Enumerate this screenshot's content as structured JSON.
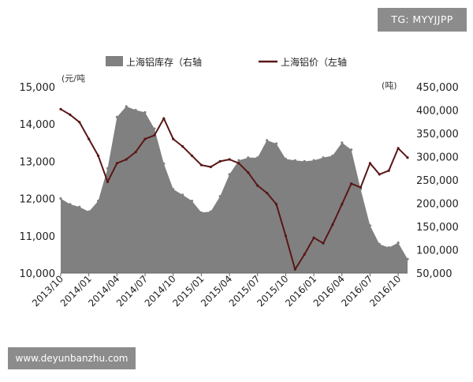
{
  "watermark_top": "TG: MYYJJPP",
  "watermark_bottom": "www.deyunbanzhu.com",
  "colors": {
    "inventory_fill": "#808080",
    "price_line": "#5a1616"
  },
  "chart_data": {
    "type": "line",
    "legend": [
      {
        "label": "上海铝库存（右轴",
        "kind": "area",
        "color": "#808080"
      },
      {
        "label": "上海铝价（左轴",
        "kind": "line",
        "color": "#5a1616"
      }
    ],
    "left_axis": {
      "unit": "(元/吨",
      "ylim": [
        10000,
        15000
      ],
      "ticks": [
        "10,000",
        "11,000",
        "12,000",
        "13,000",
        "14,000",
        "15,000"
      ]
    },
    "right_axis": {
      "unit": "(吨)",
      "ylim": [
        50000,
        450000
      ],
      "ticks": [
        "50,000",
        "100,000",
        "150,000",
        "200,000",
        "250,000",
        "300,000",
        "350,000",
        "400,000",
        "450,000"
      ]
    },
    "x_labels": [
      "2013/10",
      "2014/01",
      "2014/04",
      "2014/07",
      "2014/10",
      "2015/01",
      "2015/04",
      "2015/07",
      "2015/10",
      "2016/01",
      "2016/04",
      "2016/07",
      "2016/10"
    ],
    "x_range": [
      "2013-10",
      "2016-11"
    ],
    "series": [
      {
        "name": "上海铝库存（右轴",
        "axis": "right",
        "type": "area",
        "x": [
          "2013-10",
          "2013-11",
          "2013-12",
          "2014-01",
          "2014-02",
          "2014-03",
          "2014-04",
          "2014-05",
          "2014-06",
          "2014-07",
          "2014-08",
          "2014-09",
          "2014-10",
          "2014-11",
          "2014-12",
          "2015-01",
          "2015-02",
          "2015-03",
          "2015-04",
          "2015-05",
          "2015-06",
          "2015-07",
          "2015-08",
          "2015-09",
          "2015-10",
          "2015-11",
          "2015-12",
          "2016-01",
          "2016-02",
          "2016-03",
          "2016-04",
          "2016-05",
          "2016-06",
          "2016-07",
          "2016-08",
          "2016-09",
          "2016-10",
          "2016-11"
        ],
        "values": [
          210000,
          198000,
          192000,
          182000,
          205000,
          275000,
          385000,
          408000,
          400000,
          395000,
          360000,
          285000,
          230000,
          218000,
          205000,
          180000,
          182000,
          215000,
          262000,
          292000,
          298000,
          298000,
          335000,
          328000,
          295000,
          292000,
          290000,
          292000,
          298000,
          302000,
          330000,
          315000,
          230000,
          152000,
          112000,
          105000,
          115000,
          80000
        ]
      },
      {
        "name": "上海铝价（左轴",
        "axis": "left",
        "type": "line",
        "x": [
          "2013-10",
          "2013-11",
          "2013-12",
          "2014-01",
          "2014-02",
          "2014-03",
          "2014-04",
          "2014-05",
          "2014-06",
          "2014-07",
          "2014-08",
          "2014-09",
          "2014-10",
          "2014-11",
          "2014-12",
          "2015-01",
          "2015-02",
          "2015-03",
          "2015-04",
          "2015-05",
          "2015-06",
          "2015-07",
          "2015-08",
          "2015-09",
          "2015-10",
          "2015-11",
          "2015-12",
          "2016-01",
          "2016-02",
          "2016-03",
          "2016-04",
          "2016-05",
          "2016-06",
          "2016-07",
          "2016-08",
          "2016-09",
          "2016-10",
          "2016-11"
        ],
        "values": [
          14400,
          14250,
          14050,
          13600,
          13150,
          12450,
          12950,
          13050,
          13250,
          13600,
          13700,
          14150,
          13600,
          13400,
          13150,
          12900,
          12850,
          13000,
          13050,
          12950,
          12700,
          12350,
          12150,
          11850,
          11000,
          10100,
          10500,
          10950,
          10800,
          11300,
          11850,
          12400,
          12300,
          12950,
          12650,
          12750,
          13350,
          13100
        ]
      }
    ]
  }
}
